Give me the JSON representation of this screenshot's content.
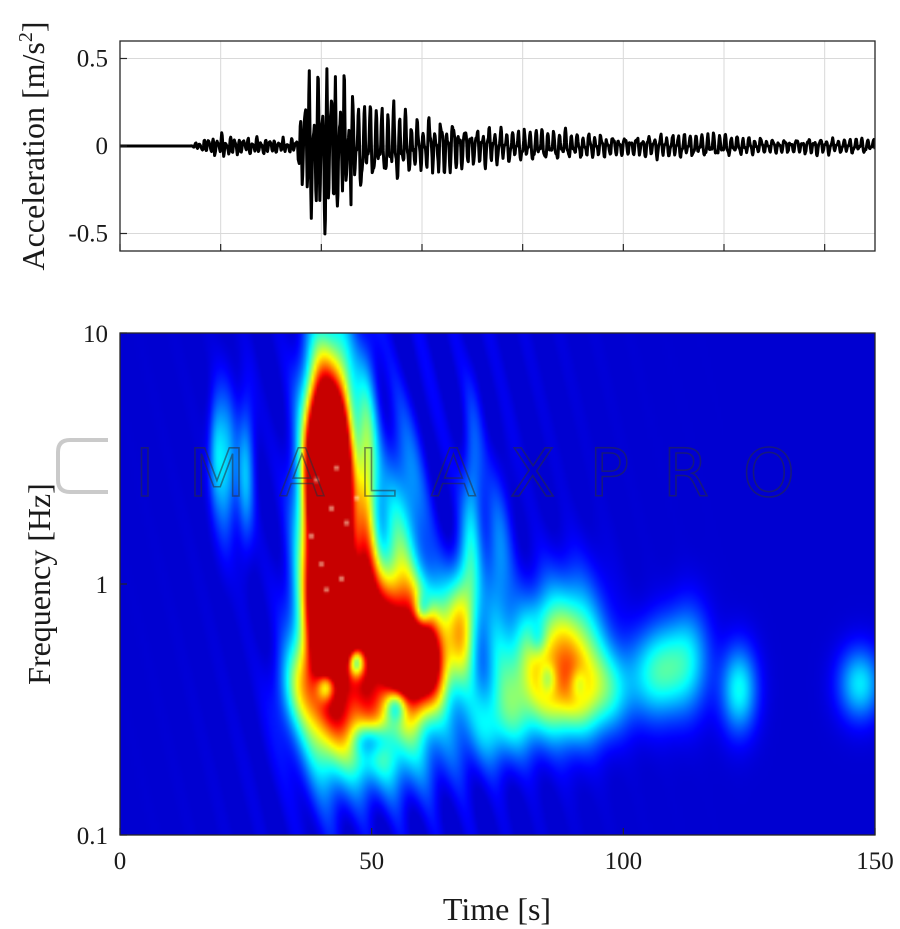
{
  "chart_data": [
    {
      "type": "line",
      "xlim": [
        0,
        150
      ],
      "ylim": [
        -0.6,
        0.6
      ],
      "xticks": [
        0,
        20,
        40,
        60,
        80,
        100,
        120,
        140
      ],
      "yticks": [
        -0.5,
        0,
        0.5
      ],
      "ytick_labels": [
        "-0.5",
        "0",
        "0.5"
      ],
      "ylabel_main": "Acceleration [m/s",
      "ylabel_sup": "2",
      "ylabel_end": "]",
      "grid": true,
      "line_color": "#000000",
      "envelope": [
        {
          "t": 0,
          "a": 0.0
        },
        {
          "t": 14,
          "a": 0.0
        },
        {
          "t": 15,
          "a": 0.02
        },
        {
          "t": 17,
          "a": 0.05
        },
        {
          "t": 20,
          "a": 0.08
        },
        {
          "t": 25,
          "a": 0.06
        },
        {
          "t": 30,
          "a": 0.05
        },
        {
          "t": 35,
          "a": 0.05
        },
        {
          "t": 37,
          "a": 0.45
        },
        {
          "t": 40,
          "a": 0.62
        },
        {
          "t": 42,
          "a": 0.6
        },
        {
          "t": 45,
          "a": 0.4
        },
        {
          "t": 50,
          "a": 0.28
        },
        {
          "t": 55,
          "a": 0.26
        },
        {
          "t": 60,
          "a": 0.18
        },
        {
          "t": 65,
          "a": 0.2
        },
        {
          "t": 70,
          "a": 0.14
        },
        {
          "t": 80,
          "a": 0.12
        },
        {
          "t": 90,
          "a": 0.1
        },
        {
          "t": 100,
          "a": 0.07
        },
        {
          "t": 110,
          "a": 0.09
        },
        {
          "t": 120,
          "a": 0.08
        },
        {
          "t": 130,
          "a": 0.05
        },
        {
          "t": 140,
          "a": 0.06
        },
        {
          "t": 150,
          "a": 0.05
        }
      ]
    },
    {
      "type": "heatmap",
      "xlim": [
        0,
        150
      ],
      "ylim": [
        0.1,
        10
      ],
      "yscale": "log",
      "xticks": [
        0,
        50,
        100,
        150
      ],
      "xtick_labels": [
        "0",
        "50",
        "100",
        "150"
      ],
      "yticks": [
        0.1,
        1,
        10
      ],
      "ytick_labels": [
        "0.1",
        "1",
        "10"
      ],
      "xlabel": "Time [s]",
      "ylabel": "Frequency [Hz]",
      "colormap": "jet",
      "background": "#00007f",
      "blobs": [
        {
          "t": 41,
          "f": 1.6,
          "st": 3.2,
          "sl": 0.45,
          "v": 2.3
        },
        {
          "t": 40,
          "f": 3.2,
          "st": 2.2,
          "sl": 0.22,
          "v": 1.5
        },
        {
          "t": 44,
          "f": 2.5,
          "st": 1.8,
          "sl": 0.3,
          "v": 1.2
        },
        {
          "t": 49,
          "f": 2.2,
          "st": 1.6,
          "sl": 0.35,
          "v": 0.9
        },
        {
          "t": 45,
          "f": 0.75,
          "st": 5,
          "sl": 0.18,
          "v": 1.6
        },
        {
          "t": 55,
          "f": 0.6,
          "st": 5,
          "sl": 0.17,
          "v": 1.3
        },
        {
          "t": 62,
          "f": 0.55,
          "st": 3,
          "sl": 0.15,
          "v": 1.0
        },
        {
          "t": 68,
          "f": 0.7,
          "st": 2,
          "sl": 0.18,
          "v": 0.85
        },
        {
          "t": 56,
          "f": 1.5,
          "st": 3,
          "sl": 0.3,
          "v": 0.55
        },
        {
          "t": 58,
          "f": 0.42,
          "st": 4,
          "sl": 0.12,
          "v": 1.0
        },
        {
          "t": 46,
          "f": 0.32,
          "st": 6,
          "sl": 0.14,
          "v": 0.75
        },
        {
          "t": 52,
          "f": 0.22,
          "st": 9,
          "sl": 0.14,
          "v": 0.5
        },
        {
          "t": 36,
          "f": 0.4,
          "st": 3,
          "sl": 0.12,
          "v": 0.55
        },
        {
          "t": 75,
          "f": 0.28,
          "st": 5,
          "sl": 0.12,
          "v": 0.45
        },
        {
          "t": 80,
          "f": 0.45,
          "st": 5,
          "sl": 0.15,
          "v": 0.45
        },
        {
          "t": 86,
          "f": 0.55,
          "st": 5,
          "sl": 0.18,
          "v": 0.6
        },
        {
          "t": 91,
          "f": 0.5,
          "st": 4,
          "sl": 0.2,
          "v": 0.55
        },
        {
          "t": 88,
          "f": 0.35,
          "st": 5,
          "sl": 0.12,
          "v": 0.4
        },
        {
          "t": 97,
          "f": 0.38,
          "st": 4,
          "sl": 0.12,
          "v": 0.45
        },
        {
          "t": 107,
          "f": 0.45,
          "st": 3.5,
          "sl": 0.13,
          "v": 0.6
        },
        {
          "t": 113,
          "f": 0.5,
          "st": 3,
          "sl": 0.15,
          "v": 0.45
        },
        {
          "t": 123,
          "f": 0.38,
          "st": 2.5,
          "sl": 0.12,
          "v": 0.55
        },
        {
          "t": 147,
          "f": 0.4,
          "st": 3,
          "sl": 0.1,
          "v": 0.5
        },
        {
          "t": 21,
          "f": 3.0,
          "st": 1.5,
          "sl": 0.2,
          "v": 0.45
        },
        {
          "t": 25,
          "f": 2.8,
          "st": 1.2,
          "sl": 0.2,
          "v": 0.4
        },
        {
          "t": 19,
          "f": 3.4,
          "st": 1,
          "sl": 0.15,
          "v": 0.3
        },
        {
          "t": 70,
          "f": 1.8,
          "st": 1.5,
          "sl": 0.3,
          "v": 0.4
        },
        {
          "t": 75,
          "f": 1.1,
          "st": 2,
          "sl": 0.25,
          "v": 0.35
        }
      ],
      "holes": [
        {
          "t": 47,
          "f": 0.49,
          "st": 1.3,
          "sl": 0.045,
          "v": 1.1
        },
        {
          "t": 55,
          "f": 0.33,
          "st": 1.6,
          "sl": 0.05,
          "v": 0.8
        },
        {
          "t": 50,
          "f": 0.24,
          "st": 2.6,
          "sl": 0.05,
          "v": 0.55
        },
        {
          "t": 41,
          "f": 0.39,
          "st": 1.4,
          "sl": 0.045,
          "v": 0.9
        },
        {
          "t": 60,
          "f": 0.78,
          "st": 1.2,
          "sl": 0.05,
          "v": 0.6
        },
        {
          "t": 85,
          "f": 0.42,
          "st": 1.2,
          "sl": 0.045,
          "v": 0.35
        },
        {
          "t": 91,
          "f": 0.4,
          "st": 1.2,
          "sl": 0.045,
          "v": 0.3
        },
        {
          "t": 83,
          "f": 0.6,
          "st": 1.2,
          "sl": 0.05,
          "v": 0.25
        }
      ],
      "spots": [
        {
          "t": 39,
          "f": 2.6
        },
        {
          "t": 42,
          "f": 2.0
        },
        {
          "t": 45,
          "f": 1.75
        },
        {
          "t": 40,
          "f": 1.2
        },
        {
          "t": 44,
          "f": 1.05
        },
        {
          "t": 38,
          "f": 1.55
        },
        {
          "t": 47,
          "f": 2.2
        },
        {
          "t": 41,
          "f": 0.95
        },
        {
          "t": 43,
          "f": 2.9
        }
      ]
    }
  ],
  "watermark": "IMALAXPRO"
}
